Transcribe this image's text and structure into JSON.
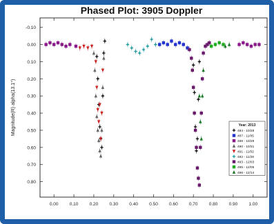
{
  "chart_data": {
    "type": "scatter",
    "title": "Phased Plot: 3905 Doppler",
    "xlabel": "",
    "ylabel": "Magnitude(R) alpha(13.1°)",
    "xlim": [
      -0.07,
      1.07
    ],
    "ylim": [
      0.89,
      -0.155
    ],
    "y_inverted": true,
    "xticks": [
      "0.00",
      "0.10",
      "0.20",
      "0.30",
      "0.40",
      "0.50",
      "0.60",
      "0.70",
      "0.80",
      "0.90",
      "1.00"
    ],
    "xtick_values": [
      0.0,
      0.1,
      0.2,
      0.3,
      0.4,
      0.5,
      0.6,
      0.7,
      0.8,
      0.9,
      1.0
    ],
    "yticks": [
      "-0.10",
      "0.00",
      "0.10",
      "0.20",
      "0.30",
      "0.40",
      "0.50",
      "0.60",
      "0.70",
      "0.80"
    ],
    "ytick_values": [
      -0.1,
      0.0,
      0.1,
      0.2,
      0.3,
      0.4,
      0.5,
      0.6,
      0.7,
      0.8
    ],
    "legend": {
      "title": "Year: 2013",
      "placement": "right",
      "entries": [
        "484 - 10/28",
        "487 - 11/05",
        "488 - 10/29",
        "490 - 10/31",
        "491 - 11/02",
        "492 - 11/28",
        "493 - 12/03",
        "495 - 12/05",
        "496 - 12/14"
      ]
    },
    "series": [
      {
        "name": "484 - 10/28",
        "color": "#111111",
        "marker": "plus",
        "points": [
          [
            0.215,
            0.07
          ],
          [
            0.22,
            0.2
          ],
          [
            0.225,
            0.35
          ],
          [
            0.23,
            0.48
          ],
          [
            0.235,
            0.55
          ],
          [
            0.24,
            0.6
          ],
          [
            0.245,
            0.3
          ],
          [
            0.25,
            0.05
          ],
          [
            0.255,
            -0.02
          ],
          [
            0.7,
            0.12
          ],
          [
            0.705,
            0.28
          ],
          [
            0.71,
            0.48
          ],
          [
            0.715,
            0.62
          ],
          [
            0.72,
            0.55
          ],
          [
            0.725,
            0.32
          ],
          [
            0.73,
            0.1
          ]
        ]
      },
      {
        "name": "487 - 11/05",
        "color": "#2233cc",
        "marker": "square",
        "points": [
          [
            0.53,
            0.0
          ],
          [
            0.55,
            -0.01
          ],
          [
            0.57,
            0.0
          ],
          [
            0.59,
            -0.02
          ],
          [
            0.61,
            0.0
          ],
          [
            0.63,
            -0.01
          ],
          [
            0.65,
            0.0
          ],
          [
            0.67,
            0.02
          ]
        ]
      },
      {
        "name": "488 - 10/29",
        "color": "#8a1a8a",
        "marker": "square",
        "points": [
          [
            -0.04,
            0.0
          ],
          [
            -0.02,
            -0.01
          ],
          [
            0.0,
            0.0
          ],
          [
            0.02,
            -0.01
          ],
          [
            0.04,
            0.0
          ],
          [
            0.06,
            0.01
          ],
          [
            0.08,
            0.0
          ],
          [
            0.11,
            0.01
          ],
          [
            0.93,
            0.0
          ],
          [
            0.95,
            -0.01
          ],
          [
            0.97,
            0.0
          ],
          [
            0.99,
            0.01
          ],
          [
            1.01,
            0.0
          ],
          [
            1.03,
            0.0
          ]
        ]
      },
      {
        "name": "490 - 10/31",
        "color": "#666666",
        "marker": "triangle",
        "points": [
          [
            0.2,
            0.05
          ],
          [
            0.205,
            0.15
          ],
          [
            0.21,
            0.3
          ],
          [
            0.215,
            0.42
          ],
          [
            0.22,
            0.5
          ],
          [
            0.225,
            0.56
          ],
          [
            0.23,
            0.62
          ],
          [
            0.235,
            0.65
          ],
          [
            0.24,
            0.5
          ],
          [
            0.245,
            0.25
          ],
          [
            0.25,
            0.08
          ]
        ]
      },
      {
        "name": "491 - 11/02",
        "color": "#cc2222",
        "marker": "triangle-down",
        "points": [
          [
            0.13,
            0.02
          ],
          [
            0.15,
            0.01
          ],
          [
            0.17,
            0.02
          ],
          [
            0.19,
            0.01
          ],
          [
            0.21,
            0.1
          ],
          [
            0.215,
            0.25
          ],
          [
            0.22,
            0.38
          ],
          [
            0.225,
            0.45
          ],
          [
            0.23,
            0.35
          ],
          [
            0.235,
            0.55
          ],
          [
            0.24,
            0.4
          ],
          [
            0.245,
            0.15
          ]
        ]
      },
      {
        "name": "492 - 11/28",
        "color": "#1a9a9a",
        "marker": "plus",
        "points": [
          [
            0.37,
            0.0
          ],
          [
            0.39,
            0.02
          ],
          [
            0.41,
            0.04
          ],
          [
            0.43,
            0.05
          ],
          [
            0.45,
            0.03
          ],
          [
            0.47,
            0.01
          ],
          [
            0.49,
            -0.03
          ],
          [
            0.51,
            0.0
          ]
        ]
      },
      {
        "name": "493 - 12/03",
        "color": "#6a1a6a",
        "marker": "square",
        "points": [
          [
            0.68,
            0.03
          ],
          [
            0.69,
            0.08
          ],
          [
            0.695,
            0.15
          ],
          [
            0.7,
            0.25
          ],
          [
            0.705,
            0.4
          ],
          [
            0.71,
            0.5
          ],
          [
            0.715,
            0.6
          ],
          [
            0.72,
            0.72
          ],
          [
            0.725,
            0.78
          ],
          [
            0.73,
            0.82
          ],
          [
            0.735,
            0.6
          ],
          [
            0.74,
            0.4
          ],
          [
            0.745,
            0.2
          ],
          [
            0.75,
            0.05
          ],
          [
            0.76,
            0.01
          ],
          [
            0.77,
            0.0
          ],
          [
            0.78,
            -0.01
          ]
        ]
      },
      {
        "name": "495 - 12/05",
        "color": "#22aa22",
        "marker": "square",
        "points": [
          [
            0.79,
            0.01
          ],
          [
            0.81,
            0.0
          ],
          [
            0.83,
            -0.01
          ],
          [
            0.85,
            0.0
          ]
        ]
      },
      {
        "name": "496 - 12/14",
        "color": "#1a7a2a",
        "marker": "triangle",
        "points": [
          [
            0.73,
            0.3
          ],
          [
            0.735,
            0.45
          ],
          [
            0.74,
            0.55
          ],
          [
            0.745,
            0.3
          ],
          [
            0.75,
            0.15
          ],
          [
            0.86,
            0.01
          ],
          [
            0.88,
            0.0
          ]
        ]
      }
    ]
  }
}
